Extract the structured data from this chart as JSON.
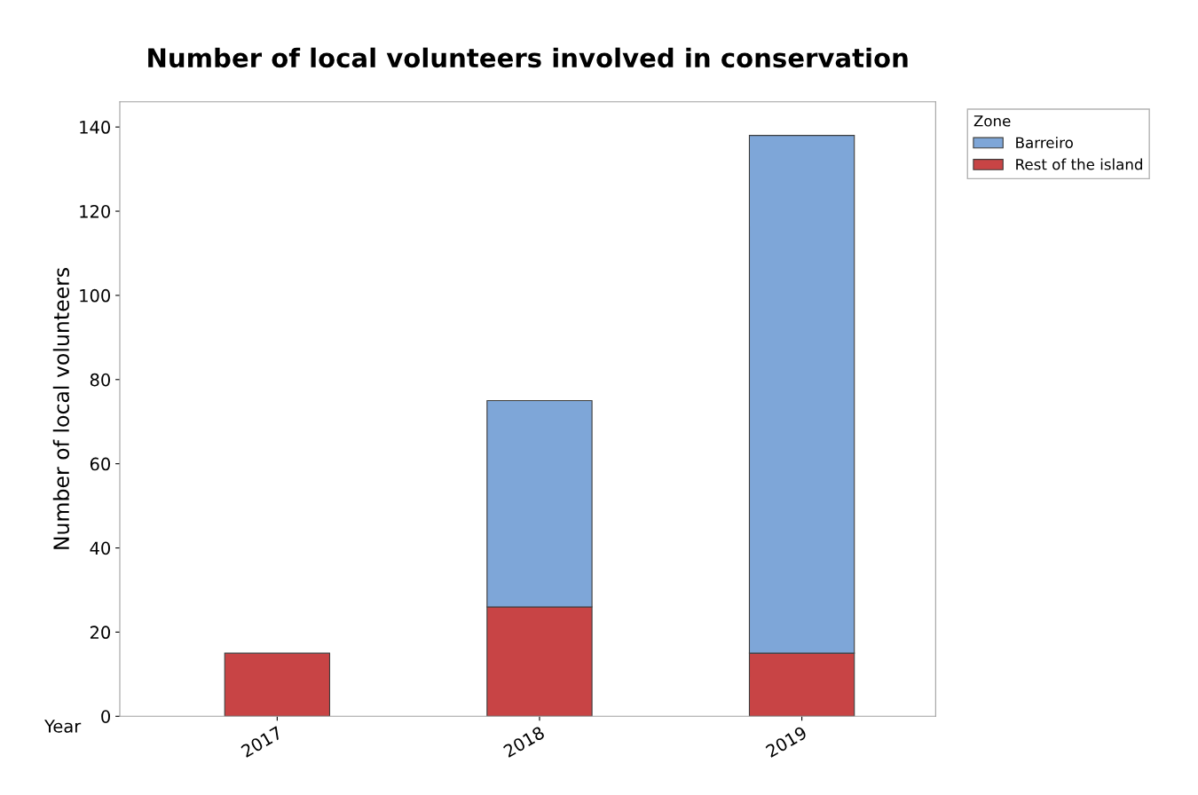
{
  "chart_data": {
    "type": "bar",
    "title": "Number of local volunteers involved in conservation",
    "xlabel": "Year",
    "ylabel": "Number of local volunteers",
    "legend_title": "Zone",
    "categories": [
      "2017",
      "2018",
      "2019"
    ],
    "stacked": true,
    "series": [
      {
        "name": "Rest of the island",
        "color": "#c84445",
        "values": [
          15,
          26,
          15
        ]
      },
      {
        "name": "Barreiro",
        "color": "#7ea6d8",
        "values": [
          null,
          49,
          123
        ]
      }
    ],
    "ylim": [
      0,
      146
    ],
    "yticks": [
      0,
      20,
      40,
      60,
      80,
      100,
      120,
      140
    ],
    "grid": false,
    "legend": "right"
  }
}
